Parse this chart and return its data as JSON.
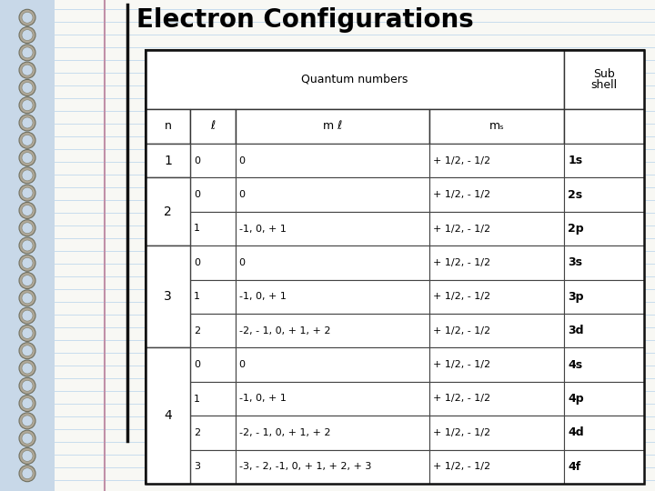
{
  "title": "Electron Configurations",
  "bg_color": "#c8d8e8",
  "paper_color": "#f8f8f4",
  "line_color": "#c0d8ec",
  "margin_line_color": "#c090a8",
  "ring_outer_color": "#a0a090",
  "ring_inner_color": "#c8d8e8",
  "title_color": "#000000",
  "table_border_color": "#222222",
  "header1": "Quantum numbers",
  "col_h_n": "n",
  "col_h_l": "ℓ",
  "col_h_ml": "m ℓ",
  "col_h_ms": "mₛ",
  "rows": [
    [
      "1",
      "0",
      "0",
      "+ 1/2, - 1/2",
      "1s"
    ],
    [
      "2",
      "0",
      "0",
      "+ 1/2, - 1/2",
      "2s"
    ],
    [
      "",
      "1",
      "-1, 0, + 1",
      "+ 1/2, - 1/2",
      "2p"
    ],
    [
      "3",
      "0",
      "0",
      "+ 1/2, - 1/2",
      "3s"
    ],
    [
      "",
      "1",
      "-1, 0, + 1",
      "+ 1/2, - 1/2",
      "3p"
    ],
    [
      "",
      "2",
      "-2, - 1, 0, + 1, + 2",
      "+ 1/2, - 1/2",
      "3d"
    ],
    [
      "4",
      "0",
      "0",
      "+ 1/2, - 1/2",
      "4s"
    ],
    [
      "",
      "1",
      "-1, 0, + 1",
      "+ 1/2, - 1/2",
      "4p"
    ],
    [
      "",
      "2",
      "-2, - 1, 0, + 1, + 2",
      "+ 1/2, - 1/2",
      "4d"
    ],
    [
      "",
      "3",
      "-3, - 2, -1, 0, + 1, + 2, + 3",
      "+ 1/2, - 1/2",
      "4f"
    ]
  ],
  "n_groups": [
    [
      0
    ],
    [
      1,
      2
    ],
    [
      3,
      4,
      5
    ],
    [
      6,
      7,
      8,
      9
    ]
  ],
  "figw": 7.2,
  "figh": 5.4,
  "dpi": 100
}
